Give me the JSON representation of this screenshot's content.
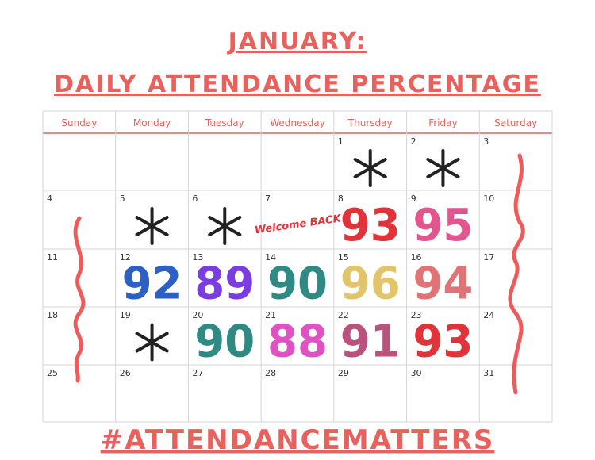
{
  "header": {
    "title": "JANUARY:",
    "subtitle": "DAILY ATTENDANCE PERCENTAGE"
  },
  "calendar": {
    "weekdays": [
      "Sunday",
      "Monday",
      "Tuesday",
      "Wednesday",
      "Thursday",
      "Friday",
      "Saturday"
    ],
    "weeks": [
      [
        null,
        null,
        null,
        null,
        {
          "day": 1
        },
        {
          "day": 2
        },
        {
          "day": 3
        }
      ],
      [
        {
          "day": 4
        },
        {
          "day": 5
        },
        {
          "day": 6
        },
        {
          "day": 7,
          "sticker": "Welcome BACK"
        },
        {
          "day": 8,
          "value": 93,
          "color": "#e0333a"
        },
        {
          "day": 9,
          "value": 95,
          "color": "#e2558e"
        },
        {
          "day": 10
        }
      ],
      [
        {
          "day": 11
        },
        {
          "day": 12,
          "value": 92,
          "color": "#2d60c4"
        },
        {
          "day": 13,
          "value": 89,
          "color": "#7b3de0"
        },
        {
          "day": 14,
          "value": 90,
          "color": "#2f8a84"
        },
        {
          "day": 15,
          "value": 96,
          "color": "#e2c46a"
        },
        {
          "day": 16,
          "value": 94,
          "color": "#e07474"
        },
        {
          "day": 17
        }
      ],
      [
        {
          "day": 18
        },
        {
          "day": 19
        },
        {
          "day": 20,
          "value": 90,
          "color": "#2f8a84"
        },
        {
          "day": 21,
          "value": 88,
          "color": "#e052c4"
        },
        {
          "day": 22,
          "value": 91,
          "color": "#b9527c"
        },
        {
          "day": 23,
          "value": 93,
          "color": "#e0333a"
        },
        {
          "day": 24
        }
      ],
      [
        {
          "day": 25
        },
        {
          "day": 26
        },
        {
          "day": 27
        },
        {
          "day": 28
        },
        {
          "day": 29
        },
        {
          "day": 30
        },
        {
          "day": 31
        }
      ]
    ]
  },
  "footer": {
    "hashtag": "#ATTENDANCEMATTERS"
  }
}
